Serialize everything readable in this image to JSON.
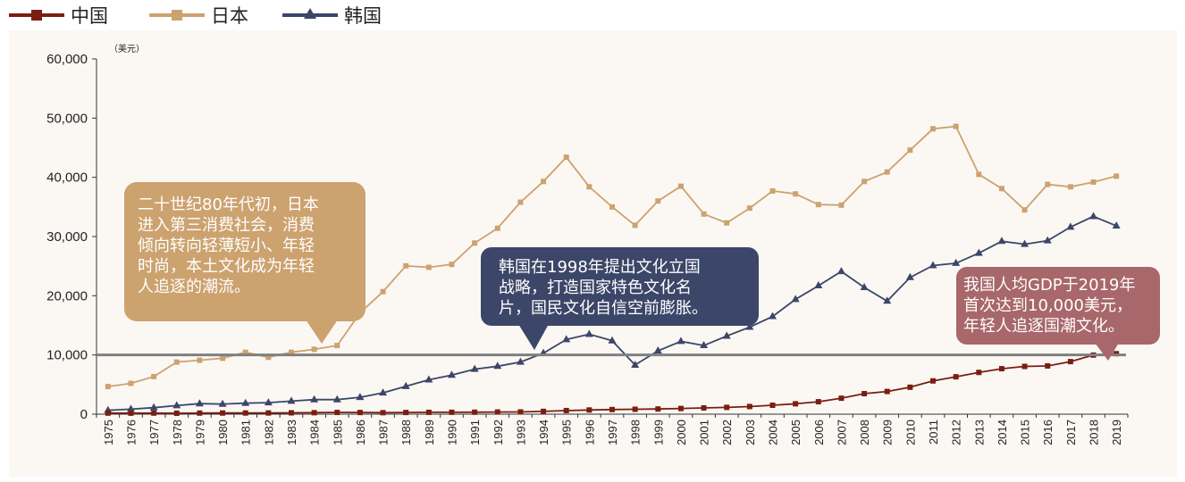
{
  "colors": {
    "china": "#7A1E12",
    "japan": "#CCA26E",
    "korea": "#3C4668",
    "threshold": "#7F7F7F",
    "plot_bg": "#FBF8F4",
    "callout_japan": "#CCA26E",
    "callout_korea": "#3C4668",
    "callout_china": "#A8676A"
  },
  "chart_data": {
    "type": "line",
    "title": "",
    "unit_label": "（美元）",
    "xlabel": "",
    "ylabel": "",
    "ylim": [
      0,
      60000
    ],
    "yticks": [
      0,
      10000,
      20000,
      30000,
      40000,
      50000,
      60000
    ],
    "ytick_labels": [
      "0",
      "10,000",
      "20,000",
      "30,000",
      "40,000",
      "50,000",
      "60,000"
    ],
    "x": [
      "1975",
      "1976",
      "1977",
      "1978",
      "1979",
      "1980",
      "1981",
      "1982",
      "1983",
      "1984",
      "1985",
      "1986",
      "1987",
      "1988",
      "1989",
      "1990",
      "1991",
      "1992",
      "1993",
      "1994",
      "1995",
      "1996",
      "1997",
      "1998",
      "1999",
      "2000",
      "2001",
      "2002",
      "2003",
      "2004",
      "2005",
      "2006",
      "2007",
      "2008",
      "2009",
      "2010",
      "2011",
      "2012",
      "2013",
      "2014",
      "2015",
      "2016",
      "2017",
      "2018",
      "2019"
    ],
    "legend_position": "top-left",
    "series": [
      {
        "name": "中国",
        "key": "china",
        "marker": "square",
        "values": [
          178,
          165,
          185,
          156,
          183,
          195,
          197,
          203,
          225,
          250,
          294,
          281,
          252,
          284,
          311,
          318,
          333,
          366,
          377,
          473,
          610,
          709,
          782,
          829,
          873,
          959,
          1053,
          1148,
          1288,
          1508,
          1753,
          2099,
          2694,
          3468,
          3832,
          4550,
          5618,
          6317,
          7051,
          7679,
          8066,
          8148,
          8879,
          9977,
          10217
        ]
      },
      {
        "name": "日本",
        "key": "japan",
        "marker": "square",
        "values": [
          4660,
          5200,
          6350,
          8800,
          9100,
          9450,
          10450,
          9600,
          10450,
          10950,
          11600,
          17100,
          20700,
          25050,
          24800,
          25300,
          28900,
          31400,
          35800,
          39300,
          43400,
          38400,
          35000,
          31900,
          36000,
          38500,
          33800,
          32300,
          34800,
          37700,
          37200,
          35400,
          35300,
          39300,
          40900,
          44600,
          48200,
          48600,
          40500,
          38100,
          34500,
          38800,
          38400,
          39200,
          40200
        ]
      },
      {
        "name": "韩国",
        "key": "korea",
        "marker": "triangle",
        "values": [
          650,
          850,
          1100,
          1450,
          1780,
          1700,
          1850,
          1950,
          2200,
          2450,
          2450,
          2850,
          3600,
          4700,
          5800,
          6600,
          7600,
          8100,
          8800,
          10300,
          12600,
          13500,
          12400,
          8300,
          10700,
          12300,
          11600,
          13200,
          14700,
          16500,
          19400,
          21700,
          24100,
          21400,
          19100,
          23100,
          25100,
          25500,
          27200,
          29200,
          28700,
          29300,
          31600,
          33400,
          31800
        ]
      }
    ],
    "reference_line": {
      "value": 10000
    },
    "annotations": [
      {
        "key": "japan",
        "lines": [
          "二十世纪80年代初，日本",
          "进入第三消费社会，消费",
          "倾向转向轻薄短小、年轻",
          "时尚，本土文化成为年轻",
          "人追逐的潮流。"
        ]
      },
      {
        "key": "korea",
        "lines": [
          "韩国在1998年提出文化立国",
          "战略，打造国家特色文化名",
          "片，国民文化自信空前膨胀。"
        ]
      },
      {
        "key": "china",
        "lines": [
          "我国人均GDP于2019年",
          "首次达到10,000美元，",
          "年轻人追逐国潮文化。"
        ]
      }
    ]
  }
}
